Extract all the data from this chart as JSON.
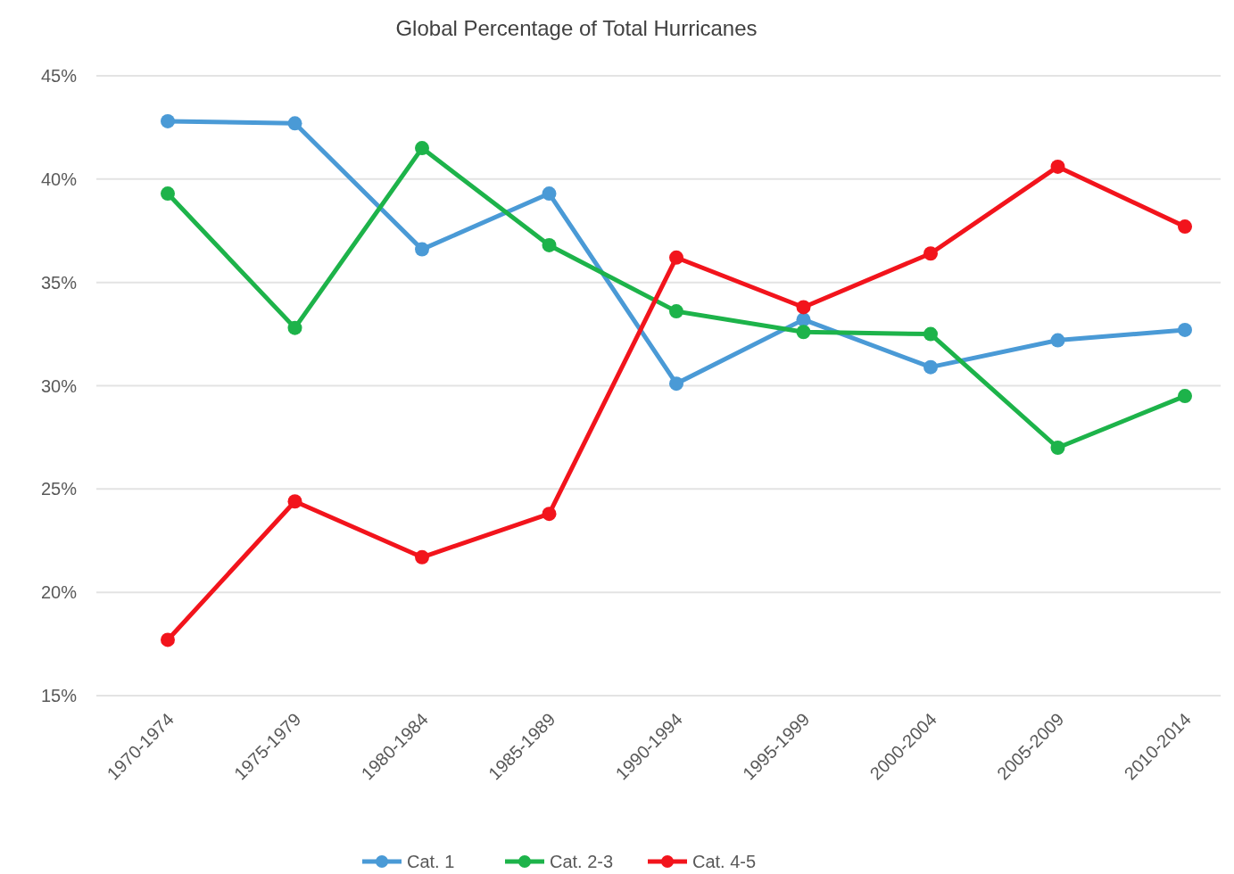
{
  "chart_data": {
    "type": "line",
    "title": "Global Percentage of Total Hurricanes",
    "categories": [
      "1970-1974",
      "1975-1979",
      "1980-1984",
      "1985-1989",
      "1990-1994",
      "1995-1999",
      "2000-2004",
      "2005-2009",
      "2010-2014"
    ],
    "series": [
      {
        "name": "Cat. 1",
        "color": "#4a9ad6",
        "values": [
          42.8,
          42.7,
          36.6,
          39.3,
          30.1,
          33.2,
          30.9,
          32.2,
          32.7
        ]
      },
      {
        "name": "Cat. 2-3",
        "color": "#1db34a",
        "values": [
          39.3,
          32.8,
          41.5,
          36.8,
          33.6,
          32.6,
          32.5,
          27.0,
          29.5
        ]
      },
      {
        "name": "Cat. 4-5",
        "color": "#f2141c",
        "values": [
          17.7,
          24.4,
          21.7,
          23.8,
          36.2,
          33.8,
          36.4,
          40.6,
          37.7
        ]
      }
    ],
    "ylim": [
      15,
      45
    ],
    "yticks": [
      {
        "value": 15,
        "label": "15%"
      },
      {
        "value": 20,
        "label": "20%"
      },
      {
        "value": 25,
        "label": "25%"
      },
      {
        "value": 30,
        "label": "30%"
      },
      {
        "value": 35,
        "label": "35%"
      },
      {
        "value": 40,
        "label": "40%"
      },
      {
        "value": 45,
        "label": "45%"
      }
    ],
    "grid": "y",
    "legend": "bottom",
    "marker": "circle",
    "line_style": "solid"
  }
}
